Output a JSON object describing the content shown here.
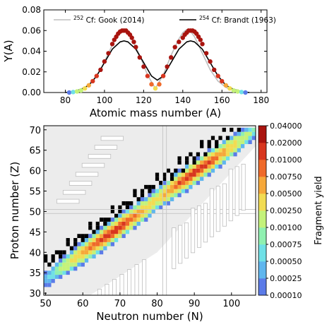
{
  "chart_data": [
    {
      "type": "line",
      "xlabel": "Atomic mass number (A)",
      "ylabel": "Y(A)",
      "xlim": [
        69,
        183
      ],
      "ylim": [
        0,
        0.08
      ],
      "xticks": [
        80,
        100,
        120,
        140,
        160,
        180
      ],
      "yticks": [
        0.0,
        0.02,
        0.04,
        0.06,
        0.08
      ],
      "ytick_labels": [
        "0.00",
        "0.02",
        "0.04",
        "0.06",
        "0.08"
      ],
      "legend_position": "top",
      "series": [
        {
          "name": "252Cf: Gook (2014)",
          "legend_prefix": "252",
          "legend_text": "Cf: Gook (2014)",
          "color": "#bdbdbd",
          "x": [
            82,
            86,
            90,
            94,
            98,
            102,
            106,
            108,
            110,
            112,
            114,
            118,
            122,
            126,
            130,
            134,
            138,
            140,
            142,
            144,
            146,
            150,
            154,
            158,
            162,
            166,
            170,
            174
          ],
          "y": [
            0.0,
            0.002,
            0.005,
            0.011,
            0.022,
            0.038,
            0.054,
            0.059,
            0.061,
            0.058,
            0.052,
            0.036,
            0.017,
            0.004,
            0.017,
            0.036,
            0.052,
            0.058,
            0.061,
            0.059,
            0.054,
            0.038,
            0.022,
            0.011,
            0.005,
            0.002,
            0.0,
            0.0
          ]
        },
        {
          "name": "254Cf: Brandt (1963)",
          "legend_prefix": "254",
          "legend_text": "Cf: Brandt (1963)",
          "color": "#000000",
          "x": [
            80,
            84,
            88,
            92,
            96,
            100,
            104,
            108,
            110,
            112,
            116,
            120,
            124,
            127,
            130,
            134,
            138,
            142,
            144,
            146,
            150,
            154,
            158,
            162,
            166,
            170,
            174
          ],
          "y": [
            0.0,
            0.001,
            0.003,
            0.007,
            0.016,
            0.029,
            0.042,
            0.049,
            0.05,
            0.049,
            0.042,
            0.029,
            0.016,
            0.012,
            0.016,
            0.029,
            0.042,
            0.049,
            0.05,
            0.049,
            0.042,
            0.029,
            0.016,
            0.007,
            0.003,
            0.001,
            0.0
          ]
        }
      ],
      "points": {
        "x": [
          82,
          84,
          86,
          88,
          90,
          92,
          94,
          96,
          98,
          100,
          102,
          104,
          105,
          106,
          107,
          108,
          109,
          110,
          111,
          112,
          113,
          114,
          115,
          116,
          118,
          120,
          122,
          124,
          126,
          128,
          130,
          132,
          134,
          136,
          138,
          140,
          141,
          142,
          143,
          144,
          145,
          146,
          147,
          148,
          149,
          150,
          152,
          154,
          156,
          158,
          160,
          162,
          164,
          166,
          168,
          170,
          172
        ],
        "y": [
          0.0,
          0.0005,
          0.001,
          0.002,
          0.004,
          0.007,
          0.011,
          0.016,
          0.022,
          0.03,
          0.038,
          0.047,
          0.051,
          0.054,
          0.057,
          0.059,
          0.06,
          0.06,
          0.06,
          0.058,
          0.056,
          0.053,
          0.049,
          0.044,
          0.034,
          0.025,
          0.016,
          0.008,
          0.004,
          0.008,
          0.016,
          0.025,
          0.034,
          0.044,
          0.049,
          0.053,
          0.056,
          0.058,
          0.06,
          0.06,
          0.06,
          0.059,
          0.057,
          0.054,
          0.051,
          0.047,
          0.038,
          0.03,
          0.022,
          0.016,
          0.011,
          0.007,
          0.004,
          0.002,
          0.001,
          0.0005,
          0.0
        ]
      }
    },
    {
      "type": "heatmap",
      "xlabel": "Neutron number (N)",
      "ylabel": "Proton number (Z)",
      "xlim": [
        49.5,
        106.5
      ],
      "ylim": [
        29.5,
        71
      ],
      "xticks": [
        50,
        60,
        70,
        80,
        90,
        100
      ],
      "yticks": [
        30,
        35,
        40,
        45,
        50,
        55,
        60,
        65,
        70
      ],
      "magic_lines": {
        "N": 82,
        "Z": 50
      },
      "colorbar": {
        "label": "Fragment yield",
        "levels": [
          "0.00010",
          "0.00025",
          "0.00050",
          "0.00075",
          "0.00100",
          "0.00250",
          "0.00500",
          "0.00750",
          "0.01000",
          "0.02000",
          "0.04000"
        ],
        "colors": [
          "#5b7be8",
          "#5fb6ee",
          "#6fe0e6",
          "#8ff0b0",
          "#c4f27a",
          "#f2dc52",
          "#f6a83a",
          "#ef6a2a",
          "#d8361f",
          "#a9140f"
        ]
      },
      "ridge": {
        "slope": 0.6575,
        "intercept": 0.25,
        "center_N": [
          68,
          90
        ],
        "peak_yield": 0.012
      }
    }
  ]
}
